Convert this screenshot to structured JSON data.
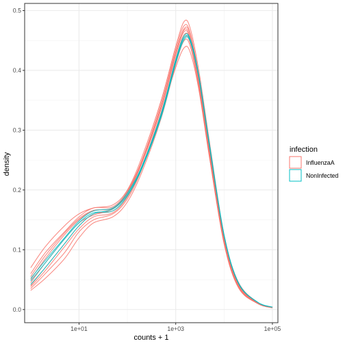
{
  "chart_data": {
    "type": "line",
    "title": "",
    "xlabel": "counts + 1",
    "ylabel": "density",
    "x_scale": "log10",
    "xlim": [
      0.75,
      130000
    ],
    "ylim": [
      -0.022,
      0.512
    ],
    "x_ticks": [
      {
        "value": 10,
        "label": "1e+01"
      },
      {
        "value": 1000,
        "label": "1e+03"
      },
      {
        "value": 100000,
        "label": "1e+05"
      }
    ],
    "y_ticks": [
      {
        "value": 0.0,
        "label": "0.0"
      },
      {
        "value": 0.1,
        "label": "0.1"
      },
      {
        "value": 0.2,
        "label": "0.2"
      },
      {
        "value": 0.3,
        "label": "0.3"
      },
      {
        "value": 0.4,
        "label": "0.4"
      },
      {
        "value": 0.5,
        "label": "0.5"
      }
    ],
    "grid": true,
    "legend": {
      "title": "infection",
      "position": "right",
      "entries": [
        {
          "name": "InfluenzaA",
          "color": "#F8766D"
        },
        {
          "name": "NonInfected",
          "color": "#00BFC4"
        }
      ]
    },
    "x": [
      1,
      2,
      5,
      10,
      20,
      50,
      100,
      200,
      500,
      1000,
      1500,
      2000,
      3000,
      5000,
      10000,
      20000,
      50000,
      100000
    ],
    "series": [
      {
        "group": "InfluenzaA",
        "color": "#F8766D",
        "values": [
          0.07,
          0.105,
          0.14,
          0.16,
          0.17,
          0.175,
          0.2,
          0.255,
          0.35,
          0.44,
          0.482,
          0.47,
          0.4,
          0.28,
          0.125,
          0.045,
          0.012,
          0.004
        ]
      },
      {
        "group": "InfluenzaA",
        "color": "#F8766D",
        "values": [
          0.06,
          0.095,
          0.13,
          0.155,
          0.17,
          0.172,
          0.198,
          0.25,
          0.345,
          0.435,
          0.475,
          0.462,
          0.392,
          0.272,
          0.12,
          0.042,
          0.011,
          0.004
        ]
      },
      {
        "group": "InfluenzaA",
        "color": "#F8766D",
        "values": [
          0.05,
          0.085,
          0.125,
          0.15,
          0.165,
          0.17,
          0.196,
          0.248,
          0.34,
          0.43,
          0.468,
          0.455,
          0.385,
          0.268,
          0.118,
          0.04,
          0.011,
          0.004
        ]
      },
      {
        "group": "InfluenzaA",
        "color": "#F8766D",
        "values": [
          0.04,
          0.07,
          0.11,
          0.14,
          0.16,
          0.165,
          0.19,
          0.24,
          0.33,
          0.42,
          0.46,
          0.45,
          0.38,
          0.262,
          0.115,
          0.038,
          0.01,
          0.003
        ]
      },
      {
        "group": "InfluenzaA",
        "color": "#F8766D",
        "values": [
          0.035,
          0.06,
          0.095,
          0.13,
          0.15,
          0.16,
          0.185,
          0.235,
          0.325,
          0.415,
          0.455,
          0.445,
          0.376,
          0.258,
          0.112,
          0.037,
          0.01,
          0.003
        ]
      },
      {
        "group": "InfluenzaA",
        "color": "#F8766D",
        "values": [
          0.032,
          0.052,
          0.085,
          0.12,
          0.145,
          0.155,
          0.18,
          0.23,
          0.32,
          0.41,
          0.45,
          0.44,
          0.372,
          0.255,
          0.11,
          0.036,
          0.01,
          0.003
        ]
      },
      {
        "group": "InfluenzaA",
        "color": "#F8766D",
        "values": [
          0.045,
          0.078,
          0.118,
          0.145,
          0.158,
          0.168,
          0.194,
          0.245,
          0.336,
          0.426,
          0.465,
          0.452,
          0.383,
          0.265,
          0.116,
          0.039,
          0.011,
          0.003
        ]
      },
      {
        "group": "InfluenzaA",
        "color": "#F8766D",
        "values": [
          0.038,
          0.065,
          0.105,
          0.135,
          0.155,
          0.162,
          0.188,
          0.238,
          0.328,
          0.405,
          0.438,
          0.43,
          0.368,
          0.254,
          0.112,
          0.037,
          0.01,
          0.003
        ]
      },
      {
        "group": "InfluenzaA",
        "color": "#F8766D",
        "values": [
          0.055,
          0.09,
          0.128,
          0.152,
          0.166,
          0.169,
          0.195,
          0.246,
          0.338,
          0.428,
          0.47,
          0.46,
          0.39,
          0.27,
          0.119,
          0.041,
          0.011,
          0.004
        ]
      },
      {
        "group": "NonInfected",
        "color": "#00BFC4",
        "values": [
          0.042,
          0.07,
          0.11,
          0.14,
          0.16,
          0.168,
          0.192,
          0.238,
          0.325,
          0.415,
          0.455,
          0.45,
          0.39,
          0.275,
          0.125,
          0.044,
          0.012,
          0.004
        ]
      },
      {
        "group": "NonInfected",
        "color": "#00BFC4",
        "values": [
          0.048,
          0.078,
          0.118,
          0.145,
          0.162,
          0.165,
          0.19,
          0.236,
          0.322,
          0.412,
          0.452,
          0.448,
          0.388,
          0.272,
          0.123,
          0.043,
          0.012,
          0.004
        ]
      },
      {
        "group": "NonInfected",
        "color": "#00BFC4",
        "values": [
          0.052,
          0.082,
          0.12,
          0.148,
          0.165,
          0.17,
          0.195,
          0.24,
          0.328,
          0.418,
          0.458,
          0.452,
          0.392,
          0.276,
          0.124,
          0.044,
          0.012,
          0.004
        ]
      }
    ]
  }
}
